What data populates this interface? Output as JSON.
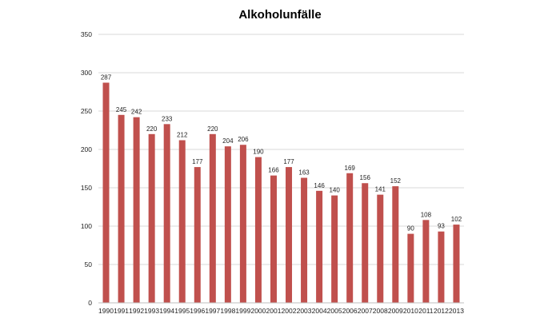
{
  "chart_data": {
    "type": "bar",
    "title": "Alkoholunfälle",
    "xlabel": "",
    "ylabel": "",
    "ylim": [
      0,
      350
    ],
    "yticks": [
      0,
      50,
      100,
      150,
      200,
      250,
      300,
      350
    ],
    "grid": true,
    "legend": "none",
    "bar_color": "#c0504d",
    "grid_color": "#d9d9d9",
    "categories": [
      "1990",
      "1991",
      "1992",
      "1993",
      "1994",
      "1995",
      "1996",
      "1997",
      "1998",
      "1999",
      "2000",
      "2001",
      "2002",
      "2003",
      "2004",
      "2005",
      "2006",
      "2007",
      "2008",
      "2009",
      "2010",
      "2011",
      "2012",
      "2013"
    ],
    "values": [
      287,
      245,
      242,
      220,
      233,
      212,
      177,
      220,
      204,
      206,
      190,
      166,
      177,
      163,
      146,
      140,
      169,
      156,
      141,
      152,
      90,
      108,
      93,
      102
    ]
  }
}
